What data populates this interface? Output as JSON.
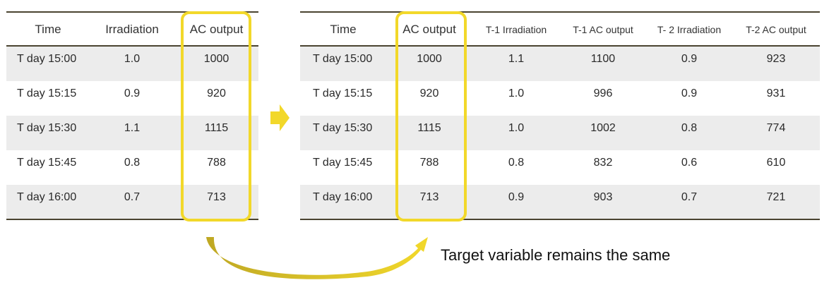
{
  "left_table": {
    "headers": [
      "Time",
      "Irradiation",
      "AC output"
    ],
    "rows": [
      [
        "T day 15:00",
        "1.0",
        "1000"
      ],
      [
        "T day 15:15",
        "0.9",
        "920"
      ],
      [
        "T day 15:30",
        "1.1",
        "1115"
      ],
      [
        "T day 15:45",
        "0.8",
        "788"
      ],
      [
        "T day 16:00",
        "0.7",
        "713"
      ]
    ]
  },
  "right_table": {
    "headers": [
      "Time",
      "AC output",
      "T-1 Irradiation",
      "T-1 AC output",
      "T- 2 Irradiation",
      "T-2 AC output"
    ],
    "rows": [
      [
        "T day 15:00",
        "1000",
        "1.1",
        "1100",
        "0.9",
        "923"
      ],
      [
        "T day 15:15",
        "920",
        "1.0",
        "996",
        "0.9",
        "931"
      ],
      [
        "T day 15:30",
        "1115",
        "1.0",
        "1002",
        "0.8",
        "774"
      ],
      [
        "T day 15:45",
        "788",
        "0.8",
        "832",
        "0.6",
        "610"
      ],
      [
        "T day 16:00",
        "713",
        "0.9",
        "903",
        "0.7",
        "721"
      ]
    ]
  },
  "caption": "Target variable remains the same",
  "colors": {
    "highlight": "#f2d82a",
    "rule": "#4a4330",
    "shade": "#ececec"
  }
}
